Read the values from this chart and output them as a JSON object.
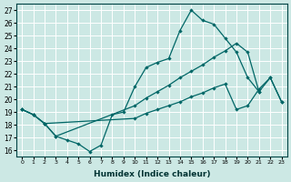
{
  "xlabel": "Humidex (Indice chaleur)",
  "bg_color": "#cce8e4",
  "grid_color": "#ffffff",
  "line_color": "#006666",
  "xlim": [
    -0.5,
    23.5
  ],
  "ylim": [
    15.5,
    27.5
  ],
  "xticks": [
    0,
    1,
    2,
    3,
    4,
    5,
    6,
    7,
    8,
    9,
    10,
    11,
    12,
    13,
    14,
    15,
    16,
    17,
    18,
    19,
    20,
    21,
    22,
    23
  ],
  "yticks": [
    16,
    17,
    18,
    19,
    20,
    21,
    22,
    23,
    24,
    25,
    26,
    27
  ],
  "lineA_x": [
    0,
    1,
    2,
    3,
    4,
    5,
    6,
    7,
    8,
    9,
    10,
    11,
    12,
    13,
    14,
    15,
    16,
    17,
    18,
    19,
    20,
    21
  ],
  "lineA_y": [
    19.2,
    18.8,
    18.1,
    17.1,
    16.8,
    16.5,
    15.9,
    16.4,
    18.8,
    19.0,
    21.0,
    22.5,
    22.9,
    23.2,
    25.4,
    27.0,
    26.2,
    25.9,
    24.8,
    23.7,
    21.7,
    20.6
  ],
  "lineB_x": [
    0,
    1,
    2,
    3,
    10,
    11,
    12,
    13,
    14,
    15,
    16,
    17,
    18,
    19,
    20,
    21,
    22,
    23
  ],
  "lineB_y": [
    19.2,
    18.8,
    18.1,
    17.1,
    19.5,
    20.1,
    20.6,
    21.1,
    21.7,
    22.2,
    22.7,
    23.3,
    23.8,
    24.4,
    23.7,
    20.6,
    21.7,
    19.8
  ],
  "lineC_x": [
    0,
    1,
    2,
    10,
    11,
    12,
    13,
    14,
    15,
    16,
    17,
    18,
    19,
    20,
    21,
    22,
    23
  ],
  "lineC_y": [
    19.2,
    18.8,
    18.1,
    18.5,
    18.9,
    19.2,
    19.5,
    19.8,
    20.2,
    20.5,
    20.9,
    21.2,
    19.2,
    19.5,
    20.8,
    21.7,
    19.8
  ],
  "figwidth": 3.2,
  "figheight": 2.0,
  "dpi": 100
}
